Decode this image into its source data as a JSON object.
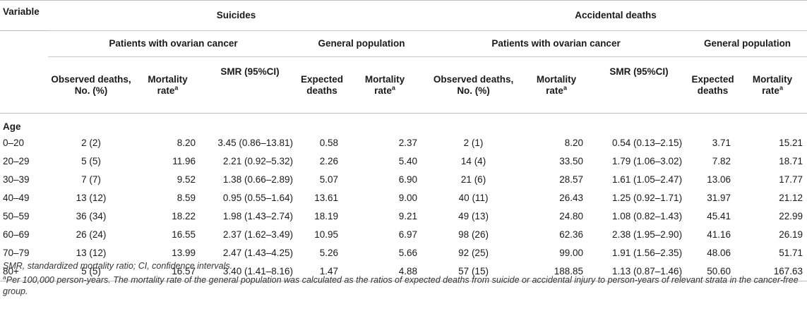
{
  "header": {
    "variable": "Variable",
    "suicides": "Suicides",
    "accidental": "Accidental deaths",
    "patients": "Patients with ovarian cancer",
    "general": "General population",
    "observed_line1": "Observed deaths,",
    "observed_line2": "No. (%)",
    "mortality_line1": "Mortality",
    "mortality_line2": "rate",
    "smr": "SMR (95%CI)",
    "expected_line1": "Expected",
    "expected_line2": "deaths",
    "sup_a": "a"
  },
  "section": "Age",
  "rows": [
    {
      "age": "0–20",
      "s_obs": "2 (2)",
      "s_rate": "8.20",
      "s_smr": "3.45 (0.86–13.81)",
      "s_exp": "0.58",
      "s_grate": "2.37",
      "a_obs": "2 (1)",
      "a_rate": "8.20",
      "a_smr": "0.54 (0.13–2.15)",
      "a_exp": "3.71",
      "a_grate": "15.21"
    },
    {
      "age": "20–29",
      "s_obs": "5 (5)",
      "s_rate": "11.96",
      "s_smr": "2.21 (0.92–5.32)",
      "s_exp": "2.26",
      "s_grate": "5.40",
      "a_obs": "14 (4)",
      "a_rate": "33.50",
      "a_smr": "1.79 (1.06–3.02)",
      "a_exp": "7.82",
      "a_grate": "18.71"
    },
    {
      "age": "30–39",
      "s_obs": "7 (7)",
      "s_rate": "9.52",
      "s_smr": "1.38 (0.66–2.89)",
      "s_exp": "5.07",
      "s_grate": "6.90",
      "a_obs": "21 (6)",
      "a_rate": "28.57",
      "a_smr": "1.61 (1.05–2.47)",
      "a_exp": "13.06",
      "a_grate": "17.77"
    },
    {
      "age": "40–49",
      "s_obs": "13 (12)",
      "s_rate": "8.59",
      "s_smr": "0.95 (0.55–1.64)",
      "s_exp": "13.61",
      "s_grate": "9.00",
      "a_obs": "40 (11)",
      "a_rate": "26.43",
      "a_smr": "1.25 (0.92–1.71)",
      "a_exp": "31.97",
      "a_grate": "21.12"
    },
    {
      "age": "50–59",
      "s_obs": "36 (34)",
      "s_rate": "18.22",
      "s_smr": "1.98 (1.43–2.74)",
      "s_exp": "18.19",
      "s_grate": "9.21",
      "a_obs": "49 (13)",
      "a_rate": "24.80",
      "a_smr": "1.08 (0.82–1.43)",
      "a_exp": "45.41",
      "a_grate": "22.99"
    },
    {
      "age": "60–69",
      "s_obs": "26 (24)",
      "s_rate": "16.55",
      "s_smr": "2.37 (1.62–3.49)",
      "s_exp": "10.95",
      "s_grate": "6.97",
      "a_obs": "98 (26)",
      "a_rate": "62.36",
      "a_smr": "2.38 (1.95–2.90)",
      "a_exp": "41.16",
      "a_grate": "26.19"
    },
    {
      "age": "70–79",
      "s_obs": "13 (12)",
      "s_rate": "13.99",
      "s_smr": "2.47 (1.43–4.25)",
      "s_exp": "5.26",
      "s_grate": "5.66",
      "a_obs": "92 (25)",
      "a_rate": "99.00",
      "a_smr": "1.91 (1.56–2.35)",
      "a_exp": "48.06",
      "a_grate": "51.71"
    },
    {
      "age": "80+",
      "s_obs": "5 (5)",
      "s_rate": "16.57",
      "s_smr": "3.40 (1.41–8.16)",
      "s_exp": "1.47",
      "s_grate": "4.88",
      "a_obs": "57 (15)",
      "a_rate": "188.85",
      "a_smr": "1.13 (0.87–1.46)",
      "a_exp": "50.60",
      "a_grate": "167.63"
    }
  ],
  "notes": {
    "abbrev": "SMR, standardized mortality ratio; CI, confidence intervals.",
    "footnote_mark": "a",
    "footnote": "Per 100,000 person-years. The mortality rate of the general population was calculated as the ratios of expected deaths from suicide or accidental injury to person-years of relevant strata in the cancer-free group."
  }
}
